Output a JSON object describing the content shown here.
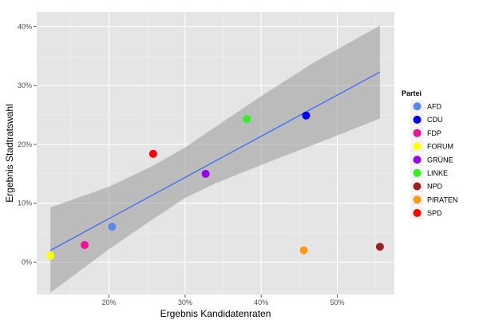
{
  "chart_data": {
    "type": "scatter",
    "xlabel": "Ergebnis Kandidatenraten",
    "ylabel": "Ergebnis Stadtratswahl",
    "xlim": [
      10.5,
      57.5
    ],
    "ylim": [
      -5.5,
      42.5
    ],
    "x_ticks": [
      {
        "value": 20,
        "label": "20%"
      },
      {
        "value": 30,
        "label": "30%"
      },
      {
        "value": 40,
        "label": "40%"
      },
      {
        "value": 50,
        "label": "50%"
      }
    ],
    "y_ticks": [
      {
        "value": 0,
        "label": "0%"
      },
      {
        "value": 10,
        "label": "10%"
      },
      {
        "value": 20,
        "label": "20%"
      },
      {
        "value": 30,
        "label": "30%"
      },
      {
        "value": 40,
        "label": "40%"
      }
    ],
    "grid": true,
    "legend": {
      "title": "Partei",
      "position": "right"
    },
    "points": [
      {
        "party": "AFD",
        "x": 20.4,
        "y": 6.0,
        "color": "#5b88f0"
      },
      {
        "party": "CDU",
        "x": 45.9,
        "y": 24.9,
        "color": "#0000ee"
      },
      {
        "party": "FDP",
        "x": 16.8,
        "y": 2.9,
        "color": "#ee1199"
      },
      {
        "party": "FORUM",
        "x": 12.3,
        "y": 1.1,
        "color": "#ffff00"
      },
      {
        "party": "GRÜNE",
        "x": 32.7,
        "y": 15.0,
        "color": "#9900ee"
      },
      {
        "party": "LINKE",
        "x": 38.1,
        "y": 24.3,
        "color": "#33ee22"
      },
      {
        "party": "NPD",
        "x": 55.6,
        "y": 2.6,
        "color": "#992222"
      },
      {
        "party": "PIRATEN",
        "x": 45.6,
        "y": 2.0,
        "color": "#ff9911"
      },
      {
        "party": "SPD",
        "x": 25.8,
        "y": 18.4,
        "color": "#ff0000"
      }
    ],
    "trend": {
      "x": [
        12.3,
        55.6
      ],
      "y": [
        2.0,
        32.3
      ],
      "color": "#3366ff",
      "band": [
        {
          "x": 12.3,
          "lo": -5.2,
          "hi": 9.3
        },
        {
          "x": 20.0,
          "lo": 2.2,
          "hi": 12.8
        },
        {
          "x": 26.0,
          "lo": 7.5,
          "hi": 16.5
        },
        {
          "x": 30.0,
          "lo": 10.9,
          "hi": 19.5
        },
        {
          "x": 34.0,
          "lo": 13.4,
          "hi": 23.0
        },
        {
          "x": 40.0,
          "lo": 16.5,
          "hi": 28.2
        },
        {
          "x": 47.0,
          "lo": 20.0,
          "hi": 34.0
        },
        {
          "x": 55.6,
          "lo": 24.4,
          "hi": 40.2
        }
      ]
    }
  }
}
